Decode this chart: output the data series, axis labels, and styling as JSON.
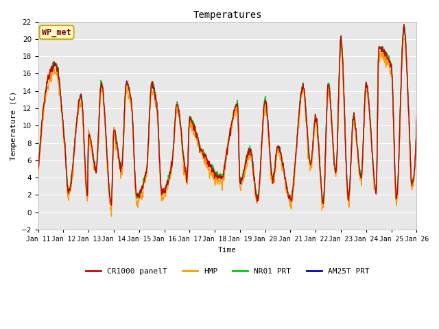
{
  "title": "Temperatures",
  "xlabel": "Time",
  "ylabel": "Temperature (C)",
  "ylim": [
    -2,
    22
  ],
  "yticks": [
    -2,
    0,
    2,
    4,
    6,
    8,
    10,
    12,
    14,
    16,
    18,
    20,
    22
  ],
  "background_color": "#e8e8e8",
  "figure_color": "#ffffff",
  "series_colors": {
    "CR1000 panelT": "#cc0000",
    "HMP": "#ff9900",
    "NR01 PRT": "#00cc00",
    "AM25T PRT": "#0000cc"
  },
  "legend_label": "WP_met",
  "x_tick_labels": [
    "Jan 11",
    "Jan 12",
    "Jan 13",
    "Jan 14",
    "Jan 15",
    "Jan 16",
    "Jan 17",
    "Jan 18",
    "Jan 19",
    "Jan 20",
    "Jan 21",
    "Jan 22",
    "Jan 23",
    "Jan 24",
    "Jan 25",
    "Jan 26"
  ],
  "peak_times": [
    0.7,
    1.05,
    1.7,
    2.0,
    2.5,
    3.0,
    3.5,
    3.7,
    4.5,
    4.7,
    5.5,
    6.0,
    7.5,
    7.9,
    8.4,
    9.0,
    9.5,
    10.5,
    11.0,
    11.5,
    12.0,
    12.5,
    13.0,
    13.5,
    14.0,
    14.5,
    14.7
  ],
  "peak_vals": [
    17.0,
    8.0,
    13.5,
    9.0,
    15.0,
    9.5,
    15.0,
    12.5,
    14.8,
    12.5,
    12.5,
    10.8,
    7.5,
    12.5,
    7.2,
    13.0,
    7.5,
    14.5,
    11.0,
    14.8,
    20.0,
    11.0,
    14.8,
    19.0,
    16.7,
    21.5,
    10.5
  ],
  "trough_times": [
    0.0,
    1.2,
    1.95,
    2.3,
    2.9,
    3.3,
    3.9,
    4.3,
    4.9,
    5.3,
    5.9,
    6.5,
    7.3,
    8.0,
    8.7,
    9.3,
    10.0,
    10.8,
    11.3,
    11.8,
    12.3,
    12.8,
    13.4,
    14.2,
    14.8,
    15.0
  ],
  "trough_vals": [
    4.5,
    2.2,
    2.0,
    5.0,
    1.0,
    5.0,
    1.8,
    5.0,
    2.2,
    5.5,
    4.0,
    7.0,
    4.0,
    3.5,
    1.5,
    3.8,
    1.5,
    5.5,
    1.2,
    4.5,
    1.5,
    4.0,
    2.5,
    1.5,
    3.5,
    10.5
  ],
  "n_points": 900,
  "seed": 7
}
